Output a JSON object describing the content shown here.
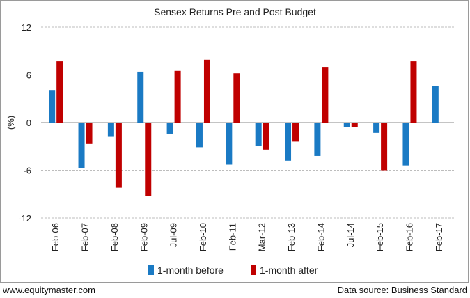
{
  "chart_data": {
    "type": "bar",
    "title": "Sensex Returns Pre and Post Budget",
    "ylabel": "(%)",
    "xlabel": "",
    "ylim": [
      -12,
      12
    ],
    "yticks": [
      12,
      6,
      0,
      -6,
      -12
    ],
    "grid": true,
    "legend_position": "bottom",
    "categories": [
      "Feb-06",
      "Feb-07",
      "Feb-08",
      "Feb-09",
      "Jul-09",
      "Feb-10",
      "Feb-11",
      "Mar-12",
      "Feb-13",
      "Feb-14",
      "Jul-14",
      "Feb-15",
      "Feb-16",
      "Feb-17"
    ],
    "series": [
      {
        "name": "1-month before",
        "color": "#1a7ac4",
        "values": [
          4.1,
          -5.7,
          -1.8,
          6.4,
          -1.4,
          -3.1,
          -5.3,
          -2.9,
          -4.8,
          -4.2,
          -0.6,
          -1.3,
          -5.4,
          4.6
        ]
      },
      {
        "name": "1-month after",
        "color": "#c00000",
        "values": [
          7.7,
          -2.7,
          -8.2,
          -9.2,
          6.5,
          7.9,
          6.2,
          -3.4,
          -2.4,
          7.0,
          -0.6,
          -6.0,
          7.7,
          null
        ]
      }
    ]
  },
  "footer": {
    "website": "www.equitymaster.com",
    "source": "Data source: Business Standard"
  }
}
